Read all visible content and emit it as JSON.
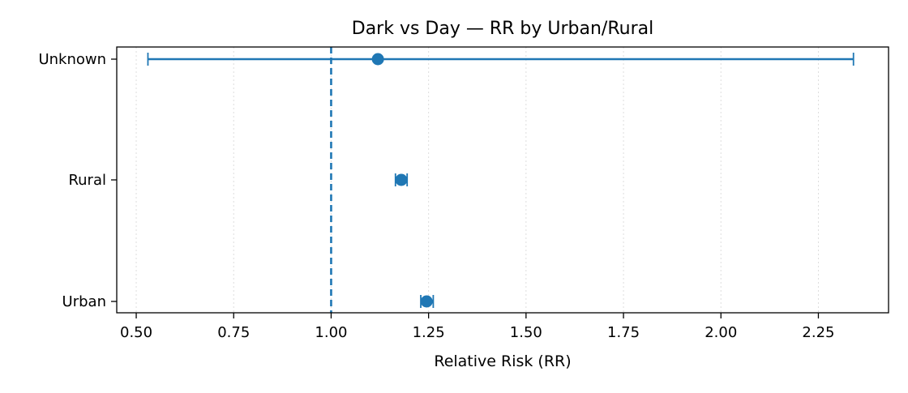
{
  "chart_data": {
    "type": "forest",
    "title": "Dark vs Day — RR by Urban/Rural",
    "xlabel": "Relative Risk (RR)",
    "ylabel": "",
    "xlim": [
      0.45,
      2.43
    ],
    "xticks": [
      "0.50",
      "0.75",
      "1.00",
      "1.25",
      "1.50",
      "1.75",
      "2.00",
      "2.25"
    ],
    "xtick_values": [
      0.5,
      0.75,
      1.0,
      1.25,
      1.5,
      1.75,
      2.0,
      2.25
    ],
    "categories": [
      "Unknown",
      "Rural",
      "Urban"
    ],
    "points": [
      {
        "label": "Unknown",
        "rr": 1.12,
        "lower": 0.53,
        "upper": 2.34
      },
      {
        "label": "Rural",
        "rr": 1.18,
        "lower": 1.165,
        "upper": 1.195
      },
      {
        "label": "Urban",
        "rr": 1.245,
        "lower": 1.23,
        "upper": 1.262
      }
    ],
    "reference_line": 1.0,
    "grid": "x-dotted",
    "colors": {
      "series": "#1f77b4",
      "grid": "#dddddd",
      "axis": "#000000"
    }
  }
}
